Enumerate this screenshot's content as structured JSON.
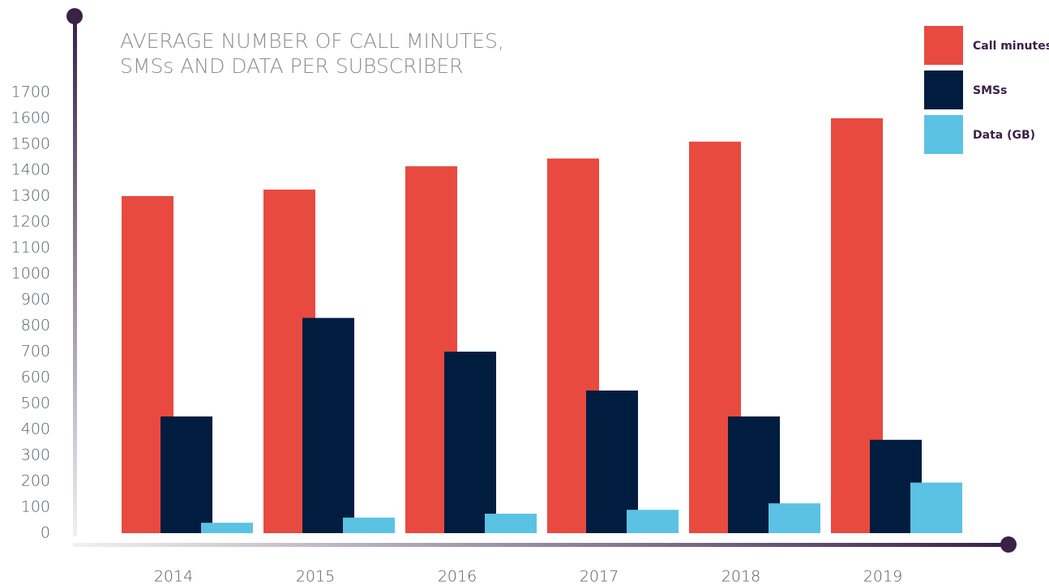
{
  "chart_data": {
    "type": "bar",
    "title": [
      "AVERAGE NUMBER OF CALL MINUTES,",
      "SMSs AND DATA PER SUBSCRIBER"
    ],
    "categories": [
      "2014",
      "2015",
      "2016",
      "2017",
      "2018",
      "2019"
    ],
    "series": [
      {
        "name": "Call minutes",
        "color": "#e84a3f",
        "values": [
          1300,
          1325,
          1415,
          1445,
          1510,
          1600
        ]
      },
      {
        "name": "SMSs",
        "color": "#001c3f",
        "values": [
          450,
          830,
          700,
          550,
          450,
          360
        ]
      },
      {
        "name": "Data (GB)",
        "color": "#5bc2e3",
        "values": [
          40,
          60,
          75,
          90,
          115,
          195
        ]
      }
    ],
    "ylim": [
      0,
      1700
    ],
    "yticks": [
      0,
      100,
      200,
      300,
      400,
      500,
      600,
      700,
      800,
      900,
      1000,
      1100,
      1200,
      1300,
      1400,
      1500,
      1600,
      1700
    ],
    "grid": false,
    "legend": "top-right"
  }
}
